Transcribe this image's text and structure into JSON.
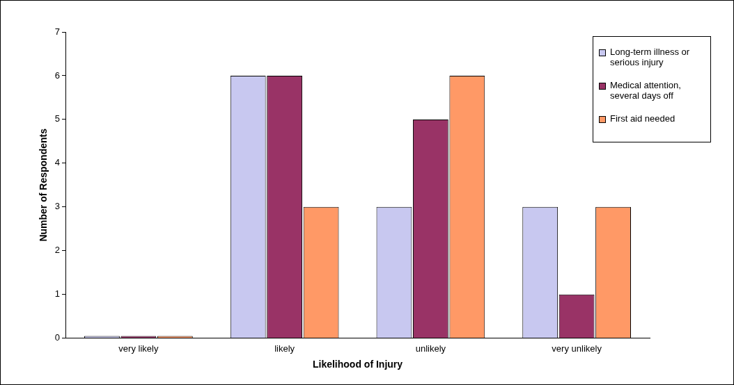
{
  "chart_data": {
    "type": "bar",
    "xlabel": "Likelihood of Injury",
    "ylabel": "Number of Respondents",
    "categories": [
      "very likely",
      "likely",
      "unlikely",
      "very unlikely"
    ],
    "series": [
      {
        "name": "Long-term illness or serious injury",
        "color": "#c8c8f0",
        "values": [
          0.05,
          6,
          3,
          3
        ]
      },
      {
        "name": "Medical attention, several days off",
        "color": "#993366",
        "values": [
          0.05,
          6,
          5,
          1
        ]
      },
      {
        "name": "First aid needed",
        "color": "#ff9966",
        "values": [
          0.05,
          3,
          6,
          3
        ]
      }
    ],
    "ylim": [
      0,
      7
    ],
    "yticks": [
      0,
      1,
      2,
      3,
      4,
      5,
      6,
      7
    ],
    "grid": false,
    "legend": "top right"
  }
}
